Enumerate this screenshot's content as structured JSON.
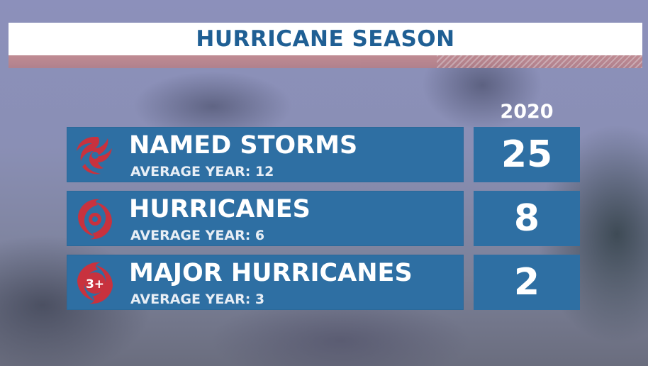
{
  "title": "HURRICANE SEASON",
  "year": "2020",
  "colors": {
    "title_text": "#1f5f94",
    "panel": "#2e6fa3",
    "icon": "#c8323e",
    "banner_accent": "#c98a8c"
  },
  "rows": [
    {
      "icon": "tropical-storm-symbol-icon",
      "label": "NAMED STORMS",
      "average_text": "AVERAGE YEAR:  12",
      "value": "25"
    },
    {
      "icon": "hurricane-symbol-icon",
      "label": "HURRICANES",
      "average_text": "AVERAGE YEAR:  6",
      "value": "8"
    },
    {
      "icon": "major-hurricane-symbol-icon",
      "icon_text": "3+",
      "label": "MAJOR HURRICANES",
      "average_text": "AVERAGE YEAR:  3",
      "value": "2"
    }
  ]
}
